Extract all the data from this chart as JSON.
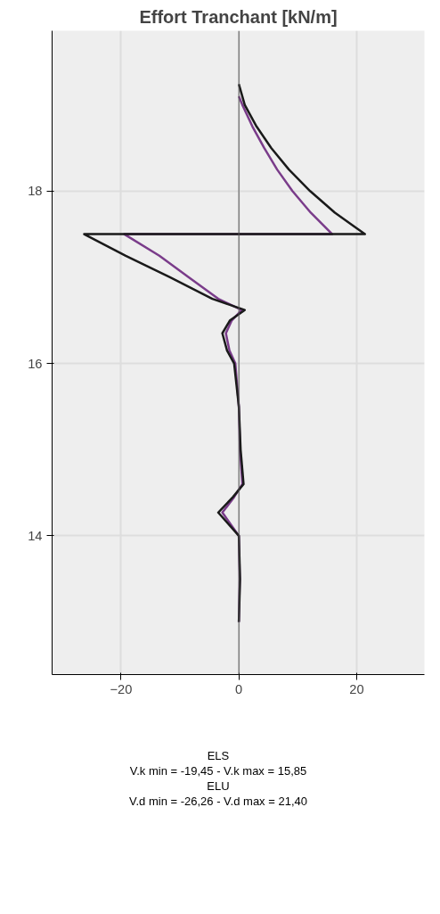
{
  "chart_data": {
    "type": "line",
    "title": "Effort Tranchant [kN/m]",
    "xlim": [
      -31.7,
      31.5
    ],
    "xticks": [
      -20,
      0,
      20
    ],
    "ylim": [
      12.39,
      19.86
    ],
    "yticks": [
      14,
      16,
      18
    ],
    "grid": true,
    "marker": "none",
    "line_style": "solid",
    "ref_lines": [
      {
        "axis": "x",
        "value": 0,
        "color": "#555555"
      }
    ],
    "series": [
      {
        "color": "#7a3c8a",
        "x": [
          0,
          0.6,
          2.3,
          4.3,
          6.5,
          9.1,
          12.2,
          15.85,
          -19.45,
          -13.5,
          -8.5,
          -3.5,
          0.5,
          -1.2,
          -2.2,
          -1.6,
          -0.6,
          0,
          0.2,
          0.6,
          -0.8,
          -2.8,
          0,
          0.15,
          0
        ],
        "values": [
          19.1,
          19.0,
          18.75,
          18.5,
          18.25,
          18.0,
          17.75,
          17.5,
          17.5,
          17.25,
          17.0,
          16.75,
          16.62,
          16.5,
          16.35,
          16.15,
          16.0,
          15.5,
          15.0,
          14.6,
          14.45,
          14.27,
          14.0,
          13.5,
          13.0
        ]
      },
      {
        "color": "#1a1a1a",
        "x": [
          0,
          1.0,
          3.0,
          5.5,
          8.5,
          12.1,
          16.3,
          21.4,
          -26.26,
          -19.2,
          -11.7,
          -4.5,
          1.0,
          -1.5,
          -2.8,
          -2.0,
          -0.8,
          0,
          0.3,
          0.8,
          -1.0,
          -3.5,
          0,
          0.2,
          0
        ],
        "values": [
          19.24,
          19.0,
          18.75,
          18.5,
          18.25,
          18.0,
          17.75,
          17.5,
          17.5,
          17.25,
          17.0,
          16.75,
          16.62,
          16.5,
          16.35,
          16.15,
          16.0,
          15.5,
          15.0,
          14.6,
          14.45,
          14.27,
          14.0,
          13.5,
          13.0
        ]
      }
    ],
    "annotations": [
      "ELS",
      "V.k min = -19,45  -  V.k max = 15,85",
      "ELU",
      "V.d min = -26,26  -  V.d max = 21,40"
    ]
  }
}
